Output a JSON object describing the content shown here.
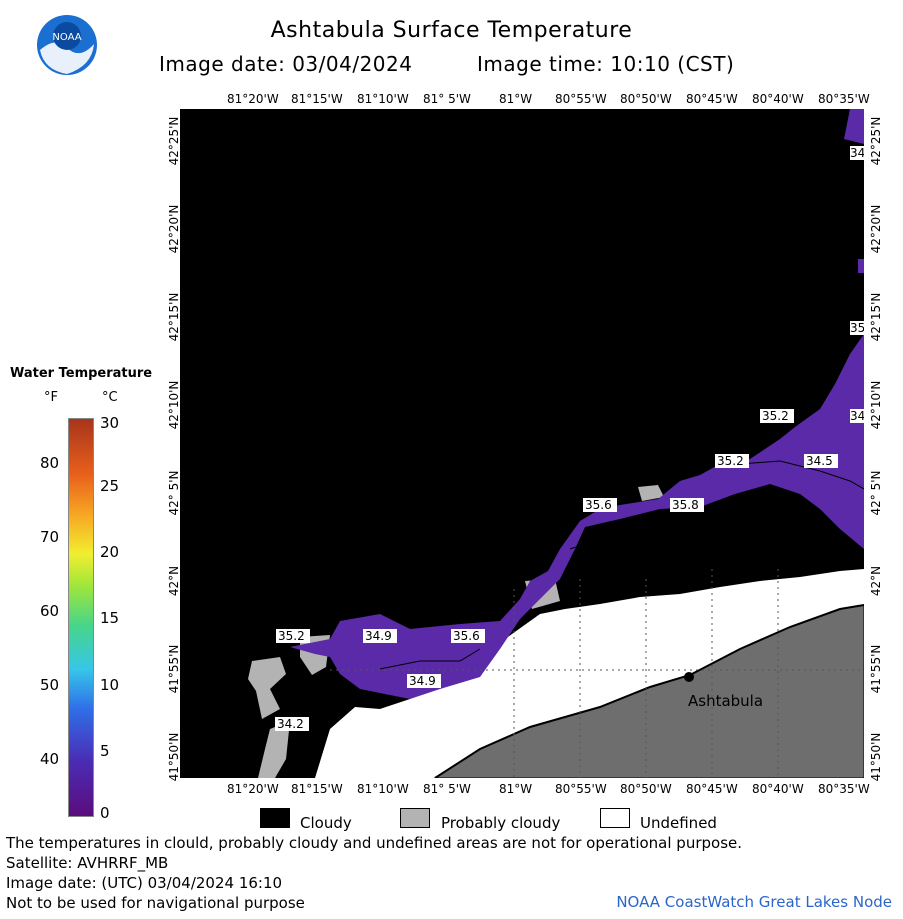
{
  "header": {
    "title": "Ashtabula Surface Temperature",
    "image_date": "Image date: 03/04/2024",
    "image_time": "Image time: 10:10 (CST)",
    "logo_text": "NOAA"
  },
  "axes": {
    "lon_labels": [
      "81°20'W",
      "81°15'W",
      "81°10'W",
      "81° 5'W",
      "81°W",
      "80°55'W",
      "80°50'W",
      "80°45'W",
      "80°40'W",
      "80°35'W"
    ],
    "lat_labels": [
      "42°25'N",
      "42°20'N",
      "42°15'N",
      "42°10'N",
      "42° 5'N",
      "42°N",
      "41°55'N",
      "41°50'N"
    ]
  },
  "legend": {
    "title": "Water Temperature",
    "unit_f": "°F",
    "unit_c": "°C",
    "f_ticks": [
      "80",
      "70",
      "60",
      "50",
      "40"
    ],
    "c_ticks": [
      "30",
      "25",
      "20",
      "15",
      "10",
      "5",
      "0"
    ]
  },
  "map": {
    "place_label": "Ashtabula",
    "temp_labels": [
      "35.2",
      "34.9",
      "35.6",
      "34.9",
      "34.2",
      "35.2",
      "35.6",
      "35.8",
      "35.2",
      "35.2",
      "34.5",
      "35",
      "34",
      "34"
    ],
    "colors": {
      "water": "#5b2aa8",
      "cloudy": "#000000",
      "probably_cloudy": "#b3b3b3",
      "undefined": "#ffffff",
      "land": "#6e6e6e"
    }
  },
  "key": {
    "cloudy": "Cloudy",
    "probably_cloudy": "Probably cloudy",
    "undefined": "Undefined"
  },
  "footer": {
    "line1": "The temperatures in clould, probably cloudy and undefined areas are not for operational purpose.",
    "line2": "Satellite: AVHRRF_MB",
    "line3": "Image date: (UTC) 03/04/2024  16:10",
    "line4": "Not to be used for navigational purpose",
    "credit": "NOAA CoastWatch Great Lakes Node"
  }
}
